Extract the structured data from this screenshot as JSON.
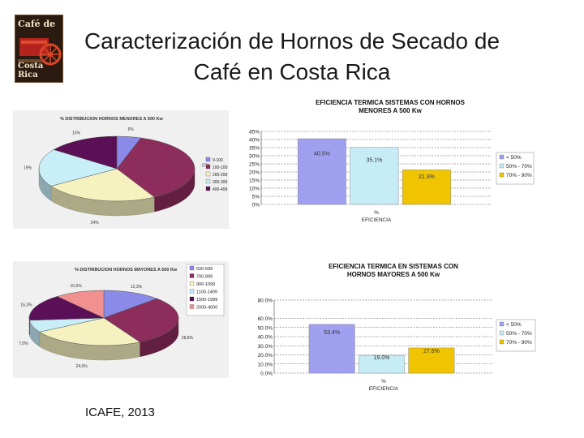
{
  "slide": {
    "title": "Caracterización de Hornos de Secado de Café en Costa Rica",
    "credit": "ICAFE, 2013",
    "logo_top": "Café de",
    "logo_bottom": "Costa Rica"
  },
  "chart_data": [
    {
      "type": "pie",
      "title": "% DISTRIBUCION HORNOS MENORES A 500 Kw",
      "slices": [
        {
          "label": "9-100",
          "value": 5,
          "color": "#8a8ae8"
        },
        {
          "label": "100-100",
          "value": 37,
          "color": "#8c2d5c"
        },
        {
          "label": "200-299",
          "value": 24,
          "color": "#f6f2c0"
        },
        {
          "label": "300-399",
          "value": 19,
          "color": "#c8eef8"
        },
        {
          "label": "400-499",
          "value": 15,
          "color": "#5a0f56"
        }
      ],
      "slice_labels": [
        "5%",
        "37%",
        "24%",
        "19%",
        "15%"
      ]
    },
    {
      "type": "bar",
      "title": "EFICIENCIA TERMICA SISTEMAS CON HORNOS MENORES A 500 Kw",
      "xlabel": "% EFICIENCIA",
      "ylim": [
        0,
        45
      ],
      "yticks": [
        "0%",
        "5%",
        "10%",
        "15%",
        "20%",
        "25%",
        "30%",
        "35%",
        "40%",
        "45%"
      ],
      "series": [
        {
          "name": "< 50%",
          "value": 40.5,
          "label": "40.5%",
          "color": "#a0a0f0"
        },
        {
          "name": "50% - 70%",
          "value": 35.1,
          "label": "35.1%",
          "color": "#c6ecf6"
        },
        {
          "name": "70% - 90%",
          "value": 21.3,
          "label": "21.3%",
          "color": "#f0c400"
        }
      ]
    },
    {
      "type": "pie",
      "title": "% DISTRIBUCION HORNOS MAYORES A 500 Kw",
      "slices": [
        {
          "label": "500-699",
          "value": 12.3,
          "color": "#8a8ae8"
        },
        {
          "label": "700-899",
          "value": 28.8,
          "color": "#8c2d5c"
        },
        {
          "label": "900-1099",
          "value": 24.0,
          "color": "#f6f2c0"
        },
        {
          "label": "1100-1499",
          "value": 7.0,
          "color": "#c8eef8"
        },
        {
          "label": "1500-1999",
          "value": 15.3,
          "color": "#5a0f56"
        },
        {
          "label": "2000-4000",
          "value": 10.5,
          "color": "#f09090"
        }
      ],
      "slice_labels": [
        "12,3%",
        "28,8%",
        "24,0%",
        "7,0%",
        "15,3%",
        "10,5%"
      ]
    },
    {
      "type": "bar",
      "title": "EFICIENCIA TERMICA EN SISTEMAS CON HORNOS MAYORES A 500 Kw",
      "xlabel": "% EFICIENCIA",
      "ylim": [
        0,
        80
      ],
      "yticks": [
        "0.0%",
        "10.0%",
        "20.0%",
        "30.0%",
        "40.0%",
        "50.0%",
        "60.0%",
        "80.0%"
      ],
      "series": [
        {
          "name": "< 50%",
          "value": 53.4,
          "label": "53.4%",
          "color": "#a0a0f0"
        },
        {
          "name": "50% - 70%",
          "value": 19.0,
          "label": "19.0%",
          "color": "#c6ecf6"
        },
        {
          "name": "70% - 90%",
          "value": 27.6,
          "label": "27.6%",
          "color": "#f0c400"
        }
      ]
    }
  ]
}
